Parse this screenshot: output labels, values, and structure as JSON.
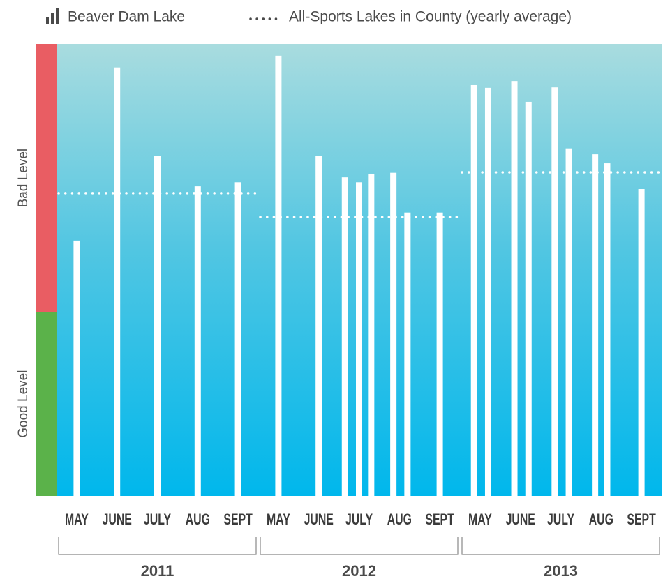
{
  "chart_data": {
    "type": "bar",
    "legend": [
      {
        "name": "Beaver Dam Lake",
        "color": "#ffffff"
      },
      {
        "name": "All-Sports Lakes in County (yearly average)",
        "color": "#ffffff"
      }
    ],
    "ylim": [
      0,
      100
    ],
    "zones": [
      {
        "label": "Bad Level",
        "from": 40.7,
        "to": 100,
        "color": "#e95d63"
      },
      {
        "label": "Good Level",
        "from": 0,
        "to": 40.7,
        "color": "#5bb24a"
      }
    ],
    "xlim": [
      -0.5,
      4.5
    ],
    "groups": [
      {
        "year": "2011",
        "categories": [
          "MAY",
          "JUNE",
          "JULY",
          "AUG",
          "SEPT"
        ],
        "x": [
          0,
          1,
          2,
          3,
          4
        ],
        "values": [
          56.5,
          94.8,
          75.2,
          68.5,
          69.4
        ],
        "average": 67.0
      },
      {
        "year": "2012",
        "categories": [
          "MAY",
          "JUNE",
          "JULY",
          "AUG",
          "SEPT"
        ],
        "x": [
          0,
          1,
          1.65,
          2.0,
          2.3,
          2.85,
          3.2,
          4.0
        ],
        "values": [
          97.4,
          75.2,
          70.5,
          69.4,
          71.3,
          71.5,
          62.7,
          62.7
        ],
        "average": 61.7
      },
      {
        "year": "2013",
        "categories": [
          "MAY",
          "JUNE",
          "JULY",
          "AUG",
          "SEPT"
        ],
        "x": [
          -0.15,
          0.2,
          0.85,
          1.2,
          1.85,
          2.2,
          2.85,
          3.15,
          4.0
        ],
        "values": [
          90.9,
          90.3,
          91.8,
          87.2,
          90.4,
          76.9,
          75.6,
          73.6,
          67.9
        ],
        "average": 71.6
      }
    ]
  }
}
